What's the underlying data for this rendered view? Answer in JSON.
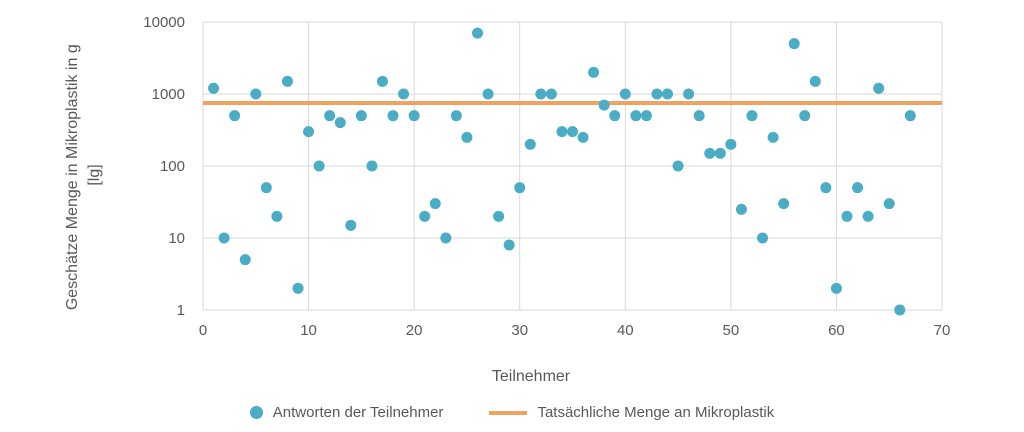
{
  "colors": {
    "points": "#4AACC5",
    "line": "#F0A35E",
    "grid": "#D9D9D9",
    "text": "#595959"
  },
  "chart_data": {
    "type": "scatter",
    "title": "",
    "xlabel": "Teilnehmer",
    "ylabel_lines": [
      "Geschätze Menge in Mikroplastik in g",
      "[lg]"
    ],
    "xlim": [
      0,
      70
    ],
    "ylim": [
      1,
      10000
    ],
    "yscale": "log",
    "x_ticks": [
      "0",
      "10",
      "20",
      "30",
      "40",
      "50",
      "60",
      "70"
    ],
    "y_ticks": [
      "1",
      "10",
      "100",
      "1000",
      "10000"
    ],
    "grid": true,
    "legend_position": "bottom",
    "series": [
      {
        "name": "Antworten der Teilnehmer",
        "kind": "scatter",
        "x": [
          1,
          2,
          3,
          4,
          5,
          6,
          7,
          8,
          9,
          10,
          11,
          12,
          13,
          14,
          15,
          16,
          17,
          18,
          19,
          20,
          21,
          22,
          23,
          24,
          25,
          26,
          27,
          28,
          29,
          30,
          31,
          32,
          33,
          34,
          35,
          36,
          37,
          38,
          39,
          40,
          41,
          42,
          43,
          44,
          45,
          46,
          47,
          48,
          49,
          50,
          51,
          52,
          53,
          54,
          55,
          56,
          57,
          58,
          59,
          60,
          61,
          62,
          63,
          64,
          65,
          66,
          67
        ],
        "y": [
          1200,
          10,
          500,
          5,
          1000,
          50,
          20,
          1500,
          2,
          300,
          100,
          500,
          400,
          15,
          500,
          100,
          1500,
          500,
          1000,
          500,
          20,
          30,
          10,
          500,
          250,
          7000,
          1000,
          20,
          8,
          50,
          200,
          1000,
          1000,
          300,
          300,
          250,
          2000,
          700,
          500,
          1000,
          500,
          500,
          1000,
          1000,
          100,
          1000,
          500,
          150,
          150,
          200,
          25,
          500,
          10,
          250,
          30,
          5000,
          500,
          1500,
          50,
          2,
          20,
          50,
          20,
          1200,
          30,
          1,
          500
        ]
      },
      {
        "name": "Tatsächliche Menge an Mikroplastik",
        "kind": "line",
        "y_constant": 750
      }
    ]
  }
}
